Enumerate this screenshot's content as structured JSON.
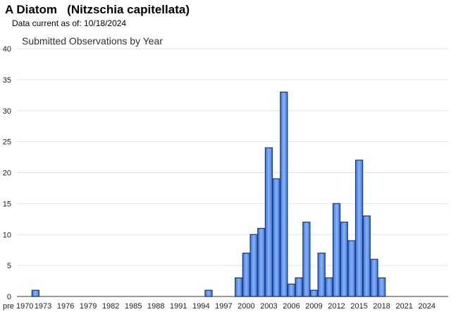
{
  "header": {
    "title": "A Diatom   (Nitzschia capitellata)",
    "subtitle": "Data current as of: 10/18/2024"
  },
  "colors": {
    "bar_fill": "#4f86e6",
    "bar_stroke": "#1a3f8f",
    "grid": "#e3e3e3"
  },
  "chart_data": {
    "type": "bar",
    "title": "Submitted Observations by Year",
    "xlabel": "",
    "ylabel": "",
    "ylim": [
      0,
      40
    ],
    "yticks": [
      0,
      5,
      10,
      15,
      20,
      25,
      30,
      35,
      40
    ],
    "grid": true,
    "x_tick_labels": [
      "pre 1970",
      "1973",
      "1976",
      "1979",
      "1982",
      "1985",
      "1988",
      "1991",
      "1994",
      "1997",
      "2000",
      "2003",
      "2006",
      "2009",
      "2012",
      "2015",
      "2018",
      "2021",
      "2024"
    ],
    "categories": [
      "pre 1970",
      "1970",
      "1971",
      "1972",
      "1973",
      "1974",
      "1975",
      "1976",
      "1977",
      "1978",
      "1979",
      "1980",
      "1981",
      "1982",
      "1983",
      "1984",
      "1985",
      "1986",
      "1987",
      "1988",
      "1989",
      "1990",
      "1991",
      "1992",
      "1993",
      "1994",
      "1995",
      "1996",
      "1997",
      "1998",
      "1999",
      "2000",
      "2001",
      "2002",
      "2003",
      "2004",
      "2005",
      "2006",
      "2007",
      "2008",
      "2009",
      "2010",
      "2011",
      "2012",
      "2013",
      "2014",
      "2015",
      "2016",
      "2017",
      "2018",
      "2019",
      "2020",
      "2021",
      "2022",
      "2023",
      "2024"
    ],
    "values": [
      0,
      0,
      0,
      1,
      0,
      0,
      0,
      0,
      0,
      0,
      0,
      0,
      0,
      0,
      0,
      0,
      0,
      0,
      0,
      0,
      0,
      0,
      0,
      0,
      0,
      0,
      1,
      0,
      0,
      0,
      3,
      7,
      10,
      11,
      24,
      19,
      33,
      2,
      3,
      12,
      1,
      7,
      3,
      15,
      12,
      9,
      22,
      13,
      6,
      3,
      0,
      0,
      0,
      0,
      0,
      0
    ]
  }
}
